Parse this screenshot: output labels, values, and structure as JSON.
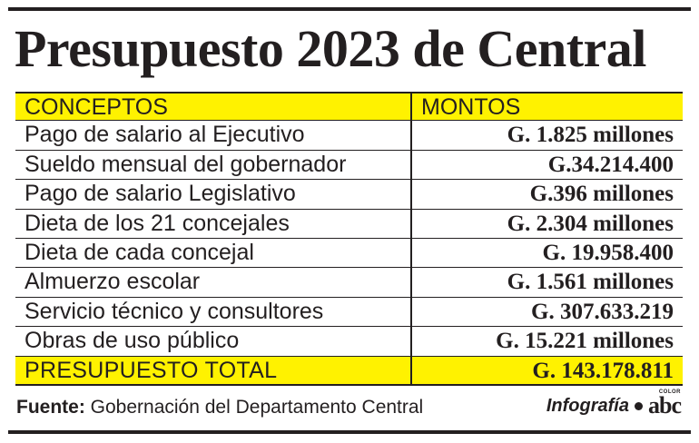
{
  "title": "Presupuesto 2023 de Central",
  "table": {
    "headers": {
      "concept": "CONCEPTOS",
      "amount": "MONTOS"
    },
    "rows": [
      {
        "concept": "Pago de salario al Ejecutivo",
        "amount": "G. 1.825 millones"
      },
      {
        "concept": "Sueldo mensual del gobernador",
        "amount": "G.34.214.400"
      },
      {
        "concept": "Pago de salario Legislativo",
        "amount": "G.396 millones"
      },
      {
        "concept": "Dieta de los 21 concejales",
        "amount": "G. 2.304 millones"
      },
      {
        "concept": "Dieta de cada concejal",
        "amount": "G. 19.958.400"
      },
      {
        "concept": "Almuerzo escolar",
        "amount": "G. 1.561 millones"
      },
      {
        "concept": "Servicio técnico y consultores",
        "amount": "G. 307.633.219"
      },
      {
        "concept": "Obras de uso público",
        "amount": "G. 15.221 millones"
      }
    ],
    "total": {
      "concept": "PRESUPUESTO TOTAL",
      "amount": "G. 143.178.811"
    }
  },
  "footer": {
    "source_label": "Fuente:",
    "source_text": "Gobernación del Departamento Central",
    "credit": "Infografía",
    "logo_text": "abc",
    "logo_sup": "COLOR"
  },
  "colors": {
    "highlight": "#fff200",
    "ink": "#231f20"
  }
}
